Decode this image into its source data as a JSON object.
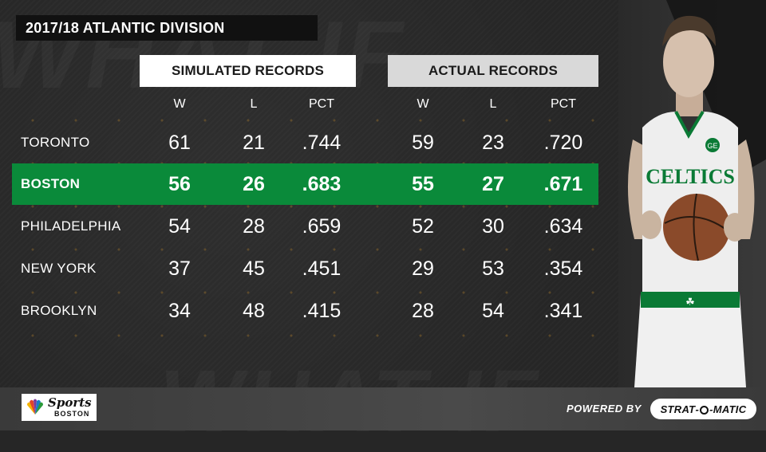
{
  "title": "2017/18 ATLANTIC DIVISION",
  "headers": {
    "simulated": "SIMULATED RECORDS",
    "actual": "ACTUAL RECORDS"
  },
  "columns": {
    "sim": [
      "W",
      "L",
      "PCT"
    ],
    "act": [
      "W",
      "L",
      "PCT"
    ]
  },
  "rows": [
    {
      "team": "TORONTO",
      "sim_w": "61",
      "sim_l": "21",
      "sim_pct": ".744",
      "act_w": "59",
      "act_l": "23",
      "act_pct": ".720"
    },
    {
      "team": "BOSTON",
      "sim_w": "56",
      "sim_l": "26",
      "sim_pct": ".683",
      "act_w": "55",
      "act_l": "27",
      "act_pct": ".671"
    },
    {
      "team": "PHILADELPHIA",
      "sim_w": "54",
      "sim_l": "28",
      "sim_pct": ".659",
      "act_w": "52",
      "act_l": "30",
      "act_pct": ".634"
    },
    {
      "team": "NEW YORK",
      "sim_w": "37",
      "sim_l": "45",
      "sim_pct": ".451",
      "act_w": "29",
      "act_l": "53",
      "act_pct": ".354"
    },
    {
      "team": "BROOKLYN",
      "sim_w": "34",
      "sim_l": "48",
      "sim_pct": ".415",
      "act_w": "28",
      "act_l": "54",
      "act_pct": ".341"
    }
  ],
  "highlight_row": "BOSTON",
  "highlight_color": "#0a8a3a",
  "footer": {
    "logo_sports": "Sports",
    "logo_city": "BOSTON",
    "powered_by": "POWERED BY",
    "strat_left": "STRAT",
    "strat_right": "MATIC"
  },
  "jersey": {
    "team_text": "CELTICS",
    "sponsor_badge": "GE"
  },
  "colors": {
    "background": "#272727",
    "accent_green": "#0a8a3a",
    "title_bar": "#111111",
    "simulated_header": "#ffffff",
    "actual_header": "#d9d9d9"
  }
}
